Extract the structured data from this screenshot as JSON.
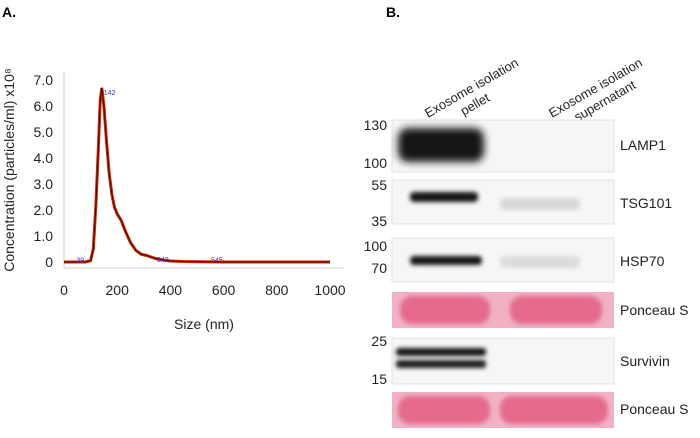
{
  "panel_a": {
    "label": "A.",
    "chart_data": {
      "type": "line",
      "xlabel": "Size (nm)",
      "ylabel": "Concentration (particles/ml) x10⁸",
      "xlim": [
        0,
        1000
      ],
      "ylim": [
        0,
        7.0
      ],
      "x_ticks": [
        "0",
        "200",
        "400",
        "600",
        "800",
        "1000"
      ],
      "y_ticks": [
        "0",
        "1.0",
        "2.0",
        "3.0",
        "4.0",
        "5.0",
        "6.0",
        "7.0"
      ],
      "peak_labels": [
        {
          "x": 39,
          "y": 0.05,
          "text": "39"
        },
        {
          "x": 142,
          "y": 6.5,
          "text": "142"
        },
        {
          "x": 342,
          "y": 0.08,
          "text": "342"
        },
        {
          "x": 545,
          "y": 0.05,
          "text": "545"
        }
      ],
      "series": [
        {
          "color": "#cc2200",
          "x": [
            0,
            40,
            80,
            100,
            110,
            120,
            130,
            136,
            142,
            150,
            160,
            170,
            180,
            190,
            200,
            215,
            230,
            250,
            270,
            290,
            310,
            330,
            350,
            370,
            400,
            450,
            500,
            600,
            700,
            800,
            900,
            1000
          ],
          "y": [
            0,
            0,
            0,
            0.05,
            0.5,
            2.2,
            4.6,
            6.2,
            6.7,
            6.0,
            4.6,
            3.4,
            2.6,
            2.1,
            1.85,
            1.6,
            1.2,
            0.75,
            0.45,
            0.3,
            0.25,
            0.18,
            0.12,
            0.08,
            0.04,
            0.02,
            0.01,
            0,
            0,
            0,
            0,
            0
          ]
        }
      ]
    }
  },
  "panel_b": {
    "label": "B.",
    "lanes": [
      "Exosome isolation pellet",
      "Exosome isolation supernatant"
    ],
    "blots": [
      {
        "name": "LAMP1",
        "mw_top": "130",
        "mw_bottom": "100"
      },
      {
        "name": "TSG101",
        "mw_top": "55",
        "mw_bottom": "35"
      },
      {
        "name": "HSP70",
        "mw_top": "100",
        "mw_bottom": "70"
      },
      {
        "name": "Ponceau S",
        "mw_top": "",
        "mw_bottom": ""
      },
      {
        "name": "Survivin",
        "mw_top": "25",
        "mw_bottom": "15"
      },
      {
        "name": "Ponceau S",
        "mw_top": "",
        "mw_bottom": ""
      }
    ],
    "colors": {
      "ponceau": "#e56a8c",
      "ponceau_light": "#f2b2c4",
      "band": "#1a1a1a"
    }
  }
}
